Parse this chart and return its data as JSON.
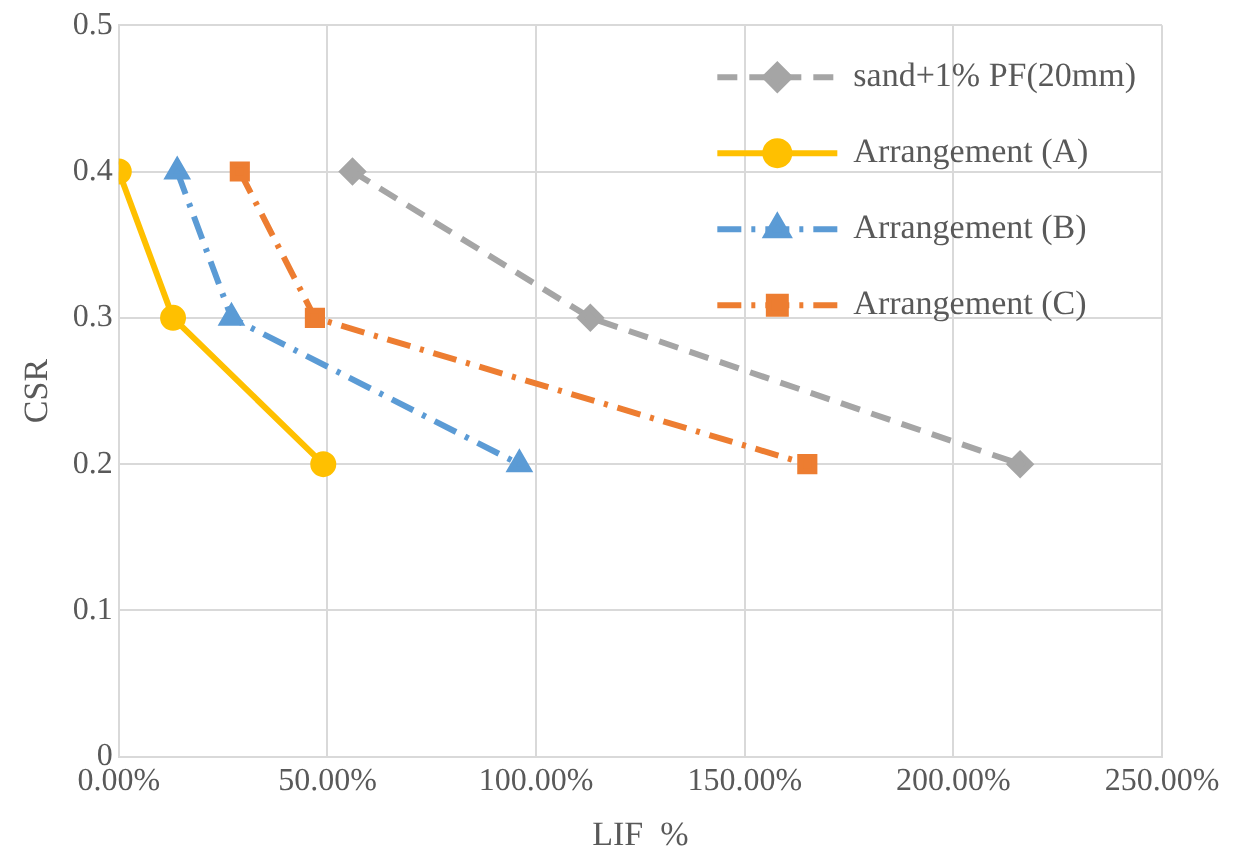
{
  "chart_data": {
    "type": "line",
    "xlabel": "LIF  %",
    "ylabel": "CSR",
    "xlim": [
      0,
      250
    ],
    "xticks": [
      {
        "value": 0,
        "label": "0.00%"
      },
      {
        "value": 50,
        "label": "50.00%"
      },
      {
        "value": 100,
        "label": "100.00%"
      },
      {
        "value": 150,
        "label": "150.00%"
      },
      {
        "value": 200,
        "label": "200.00%"
      },
      {
        "value": 250,
        "label": "250.00%"
      }
    ],
    "ylim": [
      0,
      0.5
    ],
    "yticks": [
      0,
      0.1,
      0.2,
      0.3,
      0.4,
      0.5
    ],
    "grid": true,
    "legend": "top right",
    "series": [
      {
        "name": "sand+1% PF(20mm)",
        "color": "#a5a5a5",
        "marker": "diamond",
        "line_style": "dashed",
        "x": [
          56,
          113,
          216
        ],
        "values": [
          0.4,
          0.3,
          0.2
        ]
      },
      {
        "name": "Arrangement (A)",
        "color": "#ffc000",
        "marker": "circle",
        "line_style": "solid",
        "x": [
          0,
          13,
          49
        ],
        "values": [
          0.4,
          0.3,
          0.2
        ]
      },
      {
        "name": "Arrangement (B)",
        "color": "#5b9bd5",
        "marker": "triangle",
        "line_style": "dashdot",
        "x": [
          14,
          27,
          96
        ],
        "values": [
          0.4,
          0.3,
          0.2
        ]
      },
      {
        "name": "Arrangement (C)",
        "color": "#ed7d31",
        "marker": "square",
        "line_style": "dashdot",
        "x": [
          29,
          47,
          165
        ],
        "values": [
          0.4,
          0.3,
          0.2
        ]
      }
    ]
  }
}
